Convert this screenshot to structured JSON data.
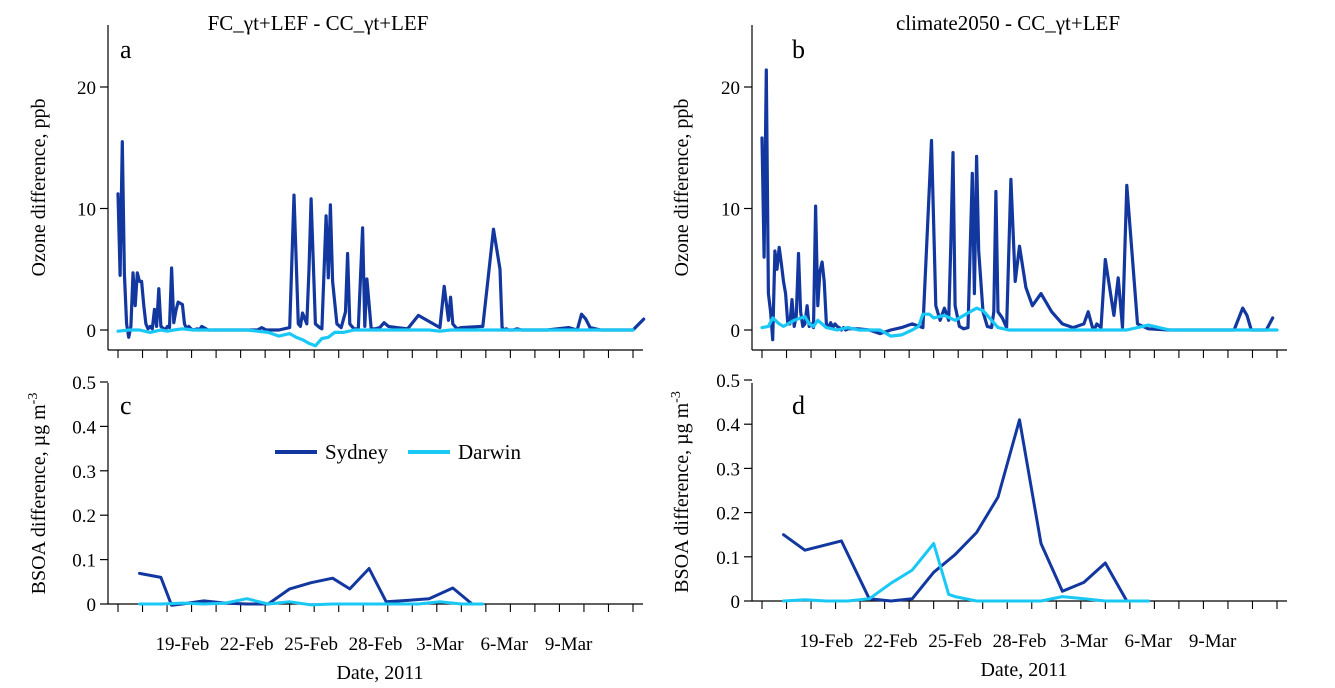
{
  "colors": {
    "sydney": "#1238A0",
    "darwin": "#1AC8F5"
  },
  "legend": {
    "entries": [
      "Sydney",
      "Darwin"
    ]
  },
  "chart_data": [
    {
      "id": "a",
      "letter": "a",
      "type": "line",
      "title": "FC_γt+LEF - CC_γt+LEF",
      "xlabel": "",
      "ylabel": "Ozone difference, ppb",
      "ylabel_sup": "",
      "ylim": [
        -1.5,
        25
      ],
      "yticks": [
        0,
        10,
        20
      ],
      "ytick_labels": [
        "0",
        "10",
        "20"
      ],
      "xlim": [
        0,
        24
      ],
      "xticks": [],
      "xtick_labels": [],
      "series": [
        {
          "name": "Sydney",
          "color_key": "sydney",
          "x": [
            0,
            0.1,
            0.2,
            0.3,
            0.4,
            0.5,
            0.6,
            0.7,
            0.8,
            0.9,
            1.0,
            1.1,
            1.2,
            1.3,
            1.4,
            1.5,
            1.6,
            1.7,
            1.8,
            1.9,
            2.0,
            2.2,
            2.3,
            2.4,
            2.5,
            2.6,
            2.7,
            2.8,
            3.0,
            3.1,
            3.2,
            3.3,
            3.4,
            3.5,
            3.7,
            3.8,
            3.9,
            4.2,
            4.5,
            5.0,
            5.5,
            6.0,
            6.5,
            6.7,
            6.9,
            7.0,
            7.5,
            8.0,
            8.2,
            8.4,
            8.5,
            8.6,
            8.8,
            8.9,
            9.0,
            9.2,
            9.4,
            9.5,
            9.7,
            9.8,
            9.9,
            10.0,
            10.2,
            10.4,
            10.6,
            10.7,
            10.8,
            11.0,
            11.2,
            11.4,
            11.5,
            11.6,
            11.8,
            12.0,
            12.2,
            12.4,
            12.6,
            13.0,
            13.5,
            14.0,
            15.0,
            15.2,
            15.4,
            15.5,
            15.6,
            15.8,
            16.0,
            17.0,
            17.5,
            17.8,
            17.9,
            18.0,
            18.1,
            18.2,
            18.4,
            18.6,
            18.8,
            19.0,
            20.0,
            21.0,
            21.4,
            21.6,
            21.8,
            22.0,
            22.5,
            23.0,
            23.2,
            23.4,
            23.6,
            24.0,
            24.5
          ],
          "values": [
            11.2,
            4.5,
            15.5,
            4.6,
            0.5,
            -0.6,
            0.3,
            4.7,
            2.0,
            4.7,
            4.0,
            4.0,
            2.0,
            0.5,
            0.1,
            0.3,
            0.1,
            1.7,
            0.3,
            3.4,
            0.3,
            0.0,
            0.3,
            0.2,
            5.1,
            0.6,
            1.6,
            2.3,
            2.1,
            0.5,
            0.1,
            0.3,
            0.1,
            0.0,
            0.1,
            0.0,
            0.3,
            0.0,
            0.0,
            0.0,
            0.0,
            0.0,
            0.0,
            0.2,
            0.0,
            0.0,
            0.0,
            0.2,
            11.1,
            0.5,
            0.3,
            1.4,
            0.5,
            5.0,
            10.8,
            0.5,
            0.2,
            0.1,
            9.4,
            4.3,
            10.3,
            4.0,
            0.5,
            0.2,
            1.5,
            6.3,
            0.5,
            0.1,
            0.1,
            8.4,
            0.3,
            4.2,
            0.1,
            0.1,
            0.2,
            0.6,
            0.3,
            0.2,
            0.1,
            1.2,
            0.2,
            3.6,
            0.8,
            2.7,
            0.5,
            0.1,
            0.2,
            0.3,
            8.3,
            5.0,
            0.2,
            0.0,
            0.1,
            0.0,
            0.0,
            0.1,
            0.0,
            0.0,
            0.0,
            0.2,
            0.0,
            1.3,
            0.9,
            0.2,
            0.0,
            0.0,
            0.0,
            0.0,
            0.0,
            0.0,
            0.9
          ]
        },
        {
          "name": "Darwin",
          "color_key": "darwin",
          "x": [
            0,
            0.5,
            1.0,
            1.5,
            2.0,
            2.3,
            2.6,
            3.0,
            3.5,
            4.0,
            4.5,
            5.0,
            5.5,
            6.0,
            6.5,
            7.0,
            7.5,
            8.0,
            8.3,
            8.6,
            8.9,
            9.2,
            9.5,
            9.8,
            10.1,
            10.5,
            11.0,
            11.5,
            12.0,
            12.5,
            13.0,
            14.0,
            14.5,
            15.0,
            15.5,
            16.0,
            17.0,
            18.0,
            19.0,
            20.0,
            21.0,
            22.0,
            23.0,
            24.0
          ],
          "values": [
            -0.1,
            0.0,
            0.0,
            -0.2,
            0.0,
            -0.1,
            0.0,
            0.1,
            0.0,
            0.0,
            0.0,
            0.0,
            0.0,
            0.0,
            -0.1,
            -0.2,
            -0.5,
            -0.3,
            -0.6,
            -0.8,
            -1.1,
            -1.3,
            -0.7,
            -0.6,
            -0.2,
            -0.2,
            0.0,
            0.0,
            0.0,
            0.0,
            0.0,
            0.0,
            0.0,
            -0.1,
            0.0,
            0.0,
            0.0,
            0.0,
            0.0,
            0.0,
            0.0,
            0.0,
            0.0,
            0.0
          ]
        }
      ]
    },
    {
      "id": "b",
      "letter": "b",
      "type": "line",
      "title": "climate2050 - CC_γt+LEF",
      "xlabel": "",
      "ylabel": "Ozone difference, ppb",
      "ylabel_sup": "",
      "ylim": [
        -1.5,
        25
      ],
      "yticks": [
        0,
        10,
        20
      ],
      "ytick_labels": [
        "0",
        "10",
        "20"
      ],
      "xlim": [
        0,
        24
      ],
      "xticks": [],
      "xtick_labels": [],
      "series": [
        {
          "name": "Sydney",
          "color_key": "sydney",
          "x": [
            0,
            0.1,
            0.2,
            0.3,
            0.4,
            0.5,
            0.6,
            0.7,
            0.8,
            0.9,
            1.0,
            1.1,
            1.2,
            1.3,
            1.4,
            1.5,
            1.6,
            1.7,
            1.8,
            1.9,
            2.0,
            2.1,
            2.2,
            2.3,
            2.4,
            2.5,
            2.6,
            2.7,
            2.8,
            2.9,
            3.0,
            3.1,
            3.2,
            3.3,
            3.4,
            3.5,
            3.6,
            3.7,
            3.8,
            3.9,
            4.0,
            4.5,
            5.0,
            5.5,
            6.0,
            6.5,
            7.0,
            7.5,
            7.9,
            8.1,
            8.3,
            8.5,
            8.7,
            8.8,
            8.9,
            9.0,
            9.2,
            9.4,
            9.6,
            9.8,
            9.9,
            10.0,
            10.1,
            10.3,
            10.5,
            10.7,
            10.8,
            10.9,
            11.0,
            11.2,
            11.4,
            11.6,
            11.8,
            12.0,
            12.3,
            12.6,
            13.0,
            13.5,
            14.0,
            14.5,
            15.0,
            15.2,
            15.4,
            15.5,
            15.6,
            15.8,
            16.0,
            16.4,
            16.6,
            16.8,
            17.0,
            17.5,
            18.0,
            19.0,
            20.0,
            21.0,
            22.0,
            22.4,
            22.6,
            22.8,
            23.0,
            23.5,
            23.8
          ],
          "values": [
            15.8,
            6.0,
            21.4,
            3.0,
            1.5,
            -0.8,
            6.5,
            5.0,
            6.8,
            5.5,
            4.0,
            3.0,
            0.5,
            0.5,
            2.5,
            0.3,
            1.2,
            6.3,
            1.5,
            0.3,
            0.5,
            2.0,
            0.3,
            0.5,
            0.2,
            10.2,
            2.0,
            4.8,
            5.6,
            4.0,
            0.5,
            0.2,
            0.6,
            0.2,
            0.5,
            0.3,
            0.2,
            0.0,
            0.2,
            0.0,
            0.1,
            0.1,
            0.0,
            -0.3,
            0.0,
            0.2,
            0.5,
            0.2,
            15.6,
            2.0,
            0.8,
            1.8,
            0.8,
            7.0,
            14.6,
            2.0,
            0.3,
            0.1,
            0.2,
            12.9,
            3.0,
            14.3,
            6.5,
            1.5,
            0.3,
            0.2,
            1.5,
            11.4,
            1.5,
            1.0,
            0.2,
            12.4,
            4.0,
            6.9,
            3.5,
            2.0,
            3.0,
            1.5,
            0.5,
            0.2,
            0.5,
            1.5,
            0.2,
            0.1,
            0.5,
            0.2,
            5.8,
            1.2,
            4.3,
            0.2,
            11.9,
            0.5,
            0.1,
            0.0,
            0.0,
            0.0,
            0.0,
            1.8,
            1.2,
            0.0,
            0.0,
            0.0,
            1.0
          ]
        },
        {
          "name": "Darwin",
          "color_key": "darwin",
          "x": [
            0,
            0.3,
            0.5,
            0.8,
            1.0,
            1.5,
            2.0,
            2.2,
            2.4,
            2.6,
            3.0,
            3.5,
            4.0,
            4.5,
            5.0,
            5.5,
            6.0,
            6.5,
            7.0,
            7.3,
            7.5,
            7.8,
            8.0,
            8.5,
            9.0,
            9.5,
            10.0,
            10.3,
            10.6,
            11.0,
            11.5,
            12.0,
            12.5,
            13.0,
            13.5,
            14.0,
            15.0,
            16.0,
            17.0,
            18.0,
            19.0,
            20.0,
            21.0,
            22.0,
            23.0,
            24.0
          ],
          "values": [
            0.2,
            0.3,
            1.0,
            0.5,
            0.3,
            0.8,
            1.1,
            0.5,
            0.3,
            0.8,
            0.2,
            0.0,
            0.2,
            0.0,
            0.0,
            0.0,
            -0.5,
            -0.4,
            0.0,
            0.3,
            1.3,
            1.3,
            1.0,
            1.2,
            0.8,
            1.3,
            1.8,
            1.6,
            1.0,
            0.2,
            0.0,
            0.0,
            0.0,
            0.0,
            0.0,
            0.0,
            0.0,
            0.0,
            0.0,
            0.4,
            0.0,
            0.0,
            0.0,
            0.0,
            0.0,
            0.0
          ]
        }
      ]
    },
    {
      "id": "c",
      "letter": "c",
      "type": "line",
      "title": "",
      "xlabel": "Date, 2011",
      "ylabel": "BSOA difference, µg m",
      "ylabel_sup": "-3",
      "ylim": [
        0,
        0.5
      ],
      "yticks": [
        0,
        0.1,
        0.2,
        0.3,
        0.4,
        0.5
      ],
      "ytick_labels": [
        "0",
        "0.1",
        "0.2",
        "0.3",
        "0.4",
        "0.5"
      ],
      "xlim": [
        0,
        24
      ],
      "xticks": [
        3,
        6,
        9,
        12,
        15,
        18,
        21
      ],
      "xtick_labels": [
        "19-Feb",
        "22-Feb",
        "25-Feb",
        "28-Feb",
        "3-Mar",
        "6-Mar",
        "9-Mar"
      ],
      "series": [
        {
          "name": "Sydney",
          "color_key": "sydney",
          "x": [
            1,
            2,
            2.5,
            3,
            4,
            5,
            6,
            7,
            8,
            9,
            10,
            10.8,
            11.7,
            12.5,
            13.5,
            14.5,
            15.6,
            16.5
          ],
          "values": [
            0.069,
            0.06,
            -0.003,
            0.0,
            0.007,
            0.002,
            0.0,
            0.0,
            0.034,
            0.048,
            0.058,
            0.034,
            0.08,
            0.005,
            0.008,
            0.012,
            0.036,
            0.0
          ]
        },
        {
          "name": "Darwin",
          "color_key": "darwin",
          "x": [
            1,
            2,
            3,
            4,
            5,
            6,
            7,
            8,
            9,
            10,
            11,
            12,
            13,
            14,
            15,
            16,
            17
          ],
          "values": [
            0.0,
            0.0,
            0.002,
            0.0,
            0.002,
            0.012,
            0.0,
            0.005,
            -0.002,
            0.0,
            0.0,
            0.0,
            0.0,
            0.0,
            0.005,
            0.0,
            0.0
          ]
        }
      ]
    },
    {
      "id": "d",
      "letter": "d",
      "type": "line",
      "title": "",
      "xlabel": "Date, 2011",
      "ylabel": "BSOA difference, µg m",
      "ylabel_sup": "-3",
      "ylim": [
        0,
        0.5
      ],
      "yticks": [
        0,
        0.1,
        0.2,
        0.3,
        0.4,
        0.5
      ],
      "ytick_labels": [
        "0",
        "0.1",
        "0.2",
        "0.3",
        "0.4",
        "0.5"
      ],
      "xlim": [
        0,
        24
      ],
      "xticks": [
        3,
        6,
        9,
        12,
        15,
        18,
        21
      ],
      "xtick_labels": [
        "19-Feb",
        "22-Feb",
        "25-Feb",
        "28-Feb",
        "3-Mar",
        "6-Mar",
        "9-Mar"
      ],
      "series": [
        {
          "name": "Sydney",
          "color_key": "sydney",
          "x": [
            1,
            2,
            3.7,
            5,
            6,
            7,
            8,
            9,
            10,
            11,
            12,
            13,
            14,
            15,
            16,
            17,
            18
          ],
          "values": [
            0.15,
            0.115,
            0.136,
            0.005,
            0.0,
            0.005,
            0.065,
            0.105,
            0.155,
            0.235,
            0.41,
            0.13,
            0.022,
            0.042,
            0.086,
            0.0,
            0.0
          ]
        },
        {
          "name": "Darwin",
          "color_key": "darwin",
          "x": [
            1,
            2,
            3,
            4,
            5,
            6,
            7,
            8,
            8.7,
            9,
            10,
            11,
            12,
            13,
            14,
            15,
            16,
            17,
            18
          ],
          "values": [
            0.0,
            0.003,
            0.0,
            0.0,
            0.005,
            0.04,
            0.07,
            0.13,
            0.015,
            0.01,
            0.0,
            0.0,
            0.0,
            0.0,
            0.01,
            0.005,
            0.0,
            0.0,
            0.0
          ]
        }
      ]
    }
  ]
}
